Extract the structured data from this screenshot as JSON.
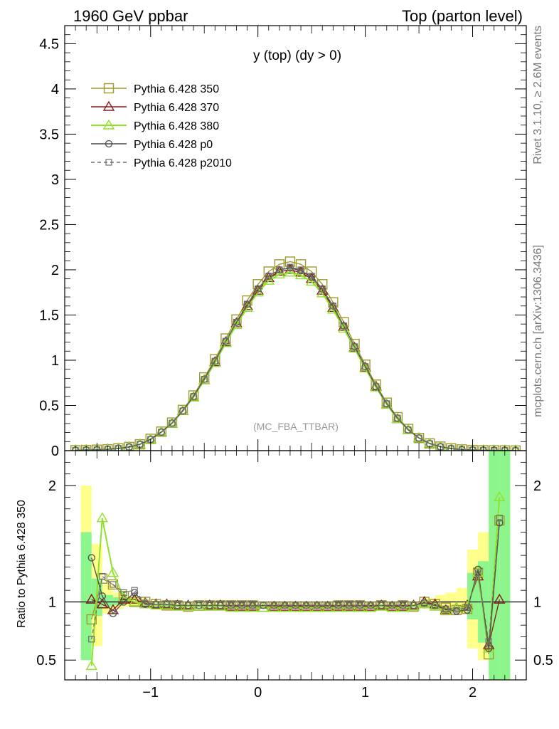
{
  "header": {
    "left_title": "1960 GeV ppbar",
    "right_title": "Top (parton level)"
  },
  "side": {
    "rivet_label": "Rivet 3.1.10, ≥ 2.6M events",
    "mcplots_label": "mcplots.cern.ch [arXiv:1306.3436]"
  },
  "plot": {
    "title": "y (top) (dy > 0)",
    "analysis_label": "(MC_FBA_TTBAR)",
    "ratio_ylabel": "Ratio to Pythia 6.428 350"
  },
  "colors": {
    "s350": "#a09a2a",
    "s370": "#8b1a1a",
    "s380": "#8fe22a",
    "p0": "#4d4d4d",
    "p2010": "#6f6f6f",
    "band_yellow": "#ffff8c",
    "band_green": "#8cf58c"
  },
  "chart_data": [
    {
      "type": "line",
      "xlim": [
        -1.8,
        2.5
      ],
      "ylim": [
        0,
        4.7
      ],
      "x_ticks": [
        "−1",
        "0",
        "1",
        "2"
      ],
      "y_ticks": [
        "0",
        "0.5",
        "1",
        "1.5",
        "2",
        "2.5",
        "3",
        "3.5",
        "4",
        "4.5"
      ],
      "legend_position": "top-left",
      "x": [
        -1.7,
        -1.6,
        -1.5,
        -1.4,
        -1.3,
        -1.2,
        -1.1,
        -1.0,
        -0.9,
        -0.8,
        -0.7,
        -0.6,
        -0.5,
        -0.4,
        -0.3,
        -0.2,
        -0.1,
        0.0,
        0.1,
        0.2,
        0.3,
        0.4,
        0.5,
        0.6,
        0.7,
        0.8,
        0.9,
        1.0,
        1.1,
        1.2,
        1.3,
        1.4,
        1.5,
        1.6,
        1.7,
        1.8,
        1.9,
        2.0,
        2.1,
        2.2,
        2.3,
        2.4
      ],
      "series": [
        {
          "name": "Pythia 6.428 350",
          "key": "s350",
          "marker": "square-open",
          "dash": false,
          "values": [
            0.004,
            0.007,
            0.01,
            0.015,
            0.025,
            0.04,
            0.07,
            0.13,
            0.21,
            0.31,
            0.45,
            0.61,
            0.81,
            1.01,
            1.24,
            1.45,
            1.66,
            1.84,
            1.98,
            2.06,
            2.09,
            2.06,
            1.98,
            1.84,
            1.64,
            1.42,
            1.18,
            0.95,
            0.73,
            0.53,
            0.37,
            0.24,
            0.14,
            0.08,
            0.045,
            0.025,
            0.013,
            0.007,
            0.004,
            0.003,
            0.002,
            0.001
          ]
        },
        {
          "name": "Pythia 6.428 370",
          "key": "s370",
          "marker": "triangle-open",
          "dash": false,
          "values": [
            0.004,
            0.007,
            0.01,
            0.015,
            0.025,
            0.04,
            0.07,
            0.125,
            0.205,
            0.3,
            0.44,
            0.59,
            0.78,
            0.98,
            1.2,
            1.41,
            1.6,
            1.77,
            1.91,
            1.98,
            2.0,
            1.97,
            1.9,
            1.77,
            1.58,
            1.37,
            1.14,
            0.92,
            0.71,
            0.51,
            0.35,
            0.23,
            0.14,
            0.078,
            0.043,
            0.023,
            0.012,
            0.007,
            0.004,
            0.003,
            0.002,
            0.001
          ]
        },
        {
          "name": "Pythia 6.428 380",
          "key": "s380",
          "marker": "triangle-open",
          "dash": false,
          "values": [
            0.004,
            0.007,
            0.01,
            0.015,
            0.025,
            0.04,
            0.07,
            0.125,
            0.205,
            0.3,
            0.44,
            0.59,
            0.78,
            0.97,
            1.19,
            1.39,
            1.58,
            1.75,
            1.88,
            1.95,
            1.97,
            1.94,
            1.87,
            1.74,
            1.56,
            1.35,
            1.13,
            0.91,
            0.7,
            0.51,
            0.35,
            0.23,
            0.14,
            0.078,
            0.043,
            0.023,
            0.012,
            0.007,
            0.004,
            0.003,
            0.002,
            0.001
          ]
        },
        {
          "name": "Pythia 6.428 p0",
          "key": "p0",
          "marker": "circle-open",
          "dash": false,
          "values": [
            0.004,
            0.007,
            0.01,
            0.015,
            0.025,
            0.04,
            0.07,
            0.125,
            0.205,
            0.305,
            0.44,
            0.6,
            0.79,
            0.99,
            1.21,
            1.42,
            1.62,
            1.79,
            1.93,
            2.0,
            2.02,
            1.99,
            1.92,
            1.79,
            1.6,
            1.38,
            1.15,
            0.93,
            0.71,
            0.52,
            0.36,
            0.23,
            0.14,
            0.078,
            0.043,
            0.023,
            0.012,
            0.007,
            0.004,
            0.003,
            0.002,
            0.001
          ]
        },
        {
          "name": "Pythia 6.428 p2010",
          "key": "p2010",
          "marker": "square-open-small",
          "dash": true,
          "values": [
            0.004,
            0.007,
            0.01,
            0.015,
            0.025,
            0.04,
            0.07,
            0.125,
            0.205,
            0.305,
            0.44,
            0.6,
            0.79,
            0.99,
            1.21,
            1.42,
            1.62,
            1.79,
            1.93,
            2.0,
            2.03,
            2.0,
            1.93,
            1.79,
            1.6,
            1.38,
            1.15,
            0.93,
            0.71,
            0.52,
            0.36,
            0.23,
            0.14,
            0.078,
            0.043,
            0.023,
            0.012,
            0.007,
            0.004,
            0.003,
            0.002,
            0.001
          ]
        }
      ]
    },
    {
      "type": "line",
      "xlim": [
        -1.8,
        2.5
      ],
      "ylim": [
        0.33,
        2.3
      ],
      "x_ticks": [
        "−1",
        "0",
        "1",
        "2"
      ],
      "y_ticks": [
        "0.5",
        "1",
        "2"
      ],
      "ylabel": "Ratio to Pythia 6.428 350",
      "reference_line": 1,
      "x": [
        -1.55,
        -1.45,
        -1.35,
        -1.25,
        -1.15,
        -1.05,
        -0.95,
        -0.85,
        -0.75,
        -0.65,
        -0.55,
        -0.45,
        -0.35,
        -0.25,
        -0.15,
        -0.05,
        0.05,
        0.15,
        0.25,
        0.35,
        0.45,
        0.55,
        0.65,
        0.75,
        0.85,
        0.95,
        1.05,
        1.15,
        1.25,
        1.35,
        1.45,
        1.55,
        1.65,
        1.75,
        1.85,
        1.95,
        2.05,
        2.15,
        2.25
      ],
      "band_yellow": [
        [
          -1.6,
          1.55,
          2.0
        ],
        [
          -1.5,
          0.62,
          1.5
        ],
        [
          -1.4,
          0.9,
          1.15
        ],
        [
          -1.3,
          0.94,
          1.08
        ],
        [
          -1.2,
          0.96,
          1.04
        ],
        [
          -1.1,
          0.97,
          1.03
        ],
        [
          1.6,
          0.97,
          1.03
        ],
        [
          1.7,
          0.95,
          1.06
        ],
        [
          1.8,
          0.93,
          1.08
        ],
        [
          1.9,
          0.9,
          1.12
        ],
        [
          2.0,
          0.6,
          1.45
        ],
        [
          2.1,
          0.5,
          1.6
        ],
        [
          2.2,
          0.33,
          2.3
        ],
        [
          2.3,
          0.33,
          2.3
        ]
      ],
      "band_green": [
        [
          -1.6,
          0.5,
          1.6
        ],
        [
          -1.5,
          0.88,
          1.2
        ],
        [
          -1.4,
          0.96,
          1.06
        ],
        [
          -1.3,
          0.97,
          1.04
        ],
        [
          2.0,
          0.85,
          1.25
        ],
        [
          2.1,
          0.65,
          1.35
        ],
        [
          2.2,
          0.33,
          2.3
        ],
        [
          2.3,
          0.33,
          2.3
        ]
      ],
      "series": [
        {
          "name": "Pythia 6.428 350",
          "key": "s350",
          "values": [
            0.85,
            1.2,
            1.15,
            1.05,
            1.0,
            1.0,
            0.98,
            0.97,
            0.97,
            0.96,
            0.97,
            0.97,
            0.97,
            0.97,
            0.97,
            0.97,
            0.96,
            0.96,
            0.96,
            0.96,
            0.96,
            0.96,
            0.96,
            0.97,
            0.97,
            0.97,
            0.96,
            0.97,
            0.96,
            0.97,
            0.96,
            1.0,
            0.98,
            0.95,
            0.93,
            0.94,
            1.25,
            0.55,
            1.7
          ]
        },
        {
          "name": "Pythia 6.428 370",
          "key": "s370",
          "values": [
            1.02,
            0.98,
            0.93,
            1.02,
            1.02,
            0.99,
            0.98,
            0.98,
            0.97,
            0.97,
            0.96,
            0.97,
            0.97,
            0.96,
            0.96,
            0.96,
            0.95,
            0.96,
            0.96,
            0.96,
            0.96,
            0.96,
            0.96,
            0.96,
            0.96,
            0.96,
            0.96,
            0.97,
            0.96,
            0.96,
            0.97,
            1.0,
            0.98,
            0.93,
            0.95,
            0.97,
            1.22,
            0.63,
            1.02
          ]
        },
        {
          "name": "Pythia 6.428 380",
          "key": "s380",
          "values": [
            0.45,
            1.72,
            1.25,
            1.04,
            1.0,
            0.98,
            0.97,
            0.97,
            0.96,
            0.96,
            0.96,
            0.96,
            0.96,
            0.95,
            0.95,
            0.95,
            0.95,
            0.95,
            0.95,
            0.95,
            0.95,
            0.95,
            0.95,
            0.95,
            0.95,
            0.95,
            0.95,
            0.96,
            0.95,
            0.95,
            0.96,
            0.98,
            0.96,
            0.92,
            0.95,
            0.96,
            1.25,
            0.6,
            1.9
          ]
        },
        {
          "name": "Pythia 6.428 p0",
          "key": "p0",
          "values": [
            1.38,
            1.05,
            0.9,
            1.0,
            1.08,
            0.98,
            0.98,
            0.98,
            0.97,
            0.97,
            0.97,
            0.97,
            0.97,
            0.97,
            0.97,
            0.97,
            0.97,
            0.97,
            0.97,
            0.97,
            0.97,
            0.97,
            0.97,
            0.97,
            0.97,
            0.97,
            0.97,
            0.97,
            0.97,
            0.97,
            0.97,
            0.99,
            0.97,
            0.94,
            0.92,
            0.93,
            1.28,
            0.6,
            1.68
          ]
        },
        {
          "name": "Pythia 6.428 p2010",
          "key": "p2010",
          "values": [
            0.68,
            1.22,
            1.15,
            1.08,
            1.1,
            0.99,
            0.98,
            0.98,
            0.97,
            0.97,
            0.97,
            0.97,
            0.97,
            0.97,
            0.97,
            0.97,
            0.97,
            0.97,
            0.97,
            0.97,
            0.97,
            0.97,
            0.97,
            0.97,
            0.97,
            0.97,
            0.97,
            0.97,
            0.97,
            0.97,
            0.97,
            0.99,
            0.97,
            0.94,
            0.93,
            0.95,
            1.25,
            0.66,
            1.72
          ]
        }
      ]
    }
  ]
}
